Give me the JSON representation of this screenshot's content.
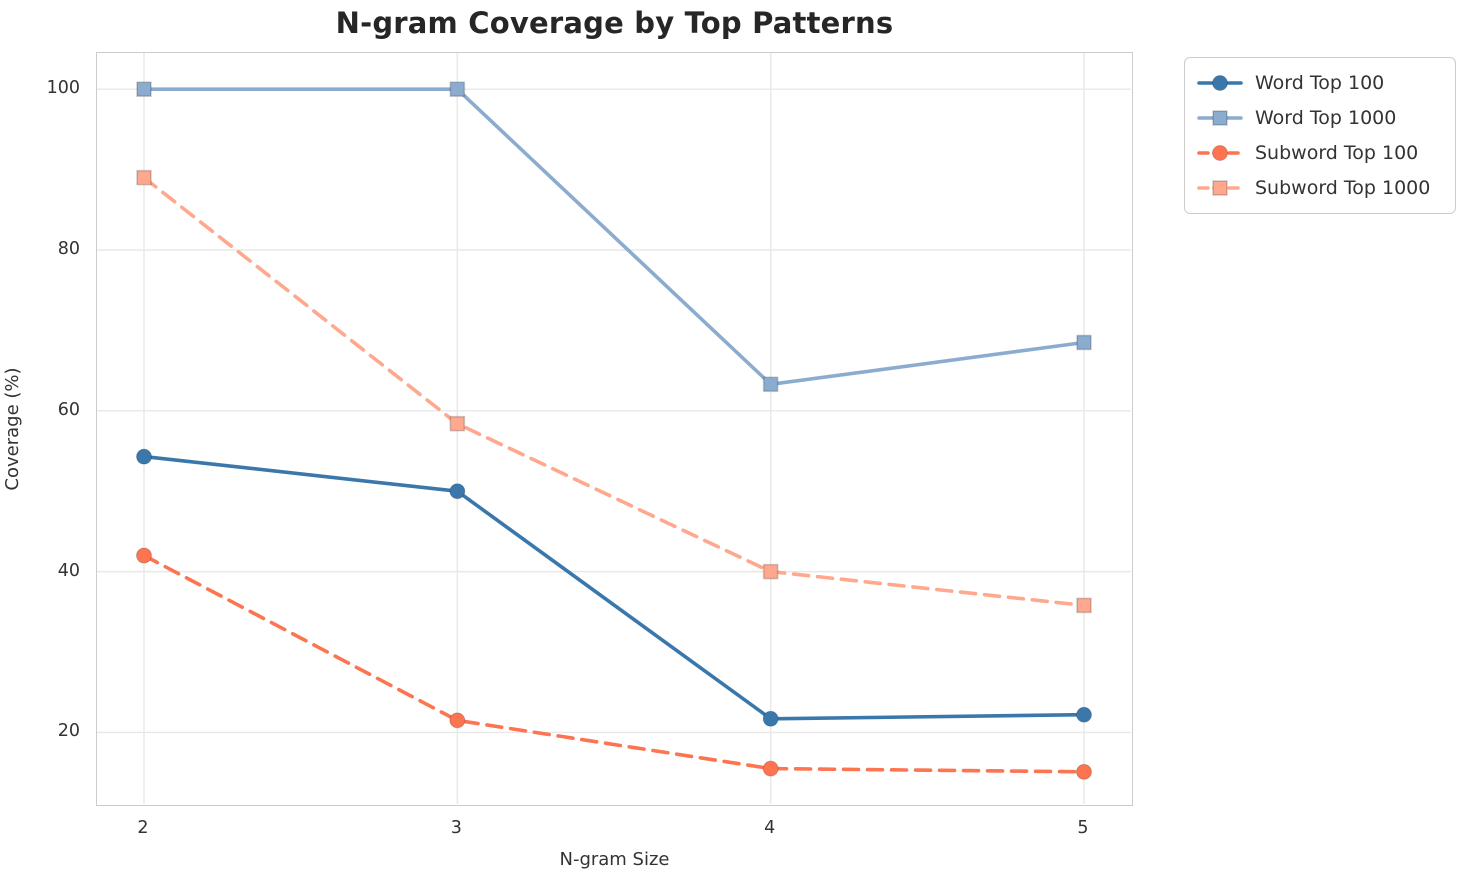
{
  "chart_data": {
    "type": "line",
    "title": "N-gram Coverage by Top Patterns",
    "xlabel": "N-gram Size",
    "ylabel": "Coverage (%)",
    "x": [
      2,
      3,
      4,
      5
    ],
    "xtick_labels": [
      "2",
      "3",
      "4",
      "5"
    ],
    "ytick_values": [
      100,
      80,
      60,
      40,
      20
    ],
    "ytick_labels": [
      "100",
      "80",
      "60",
      "40",
      "20"
    ],
    "xlim": [
      1.85,
      5.15
    ],
    "ylim": [
      11.1,
      104.5
    ],
    "grid": true,
    "legend_position": "outside-top-right",
    "series": [
      {
        "name": "Word Top 100",
        "values": [
          54.3,
          50.0,
          21.7,
          22.2
        ],
        "color": "#3a78ac",
        "line_style": "solid",
        "marker": "circle"
      },
      {
        "name": "Word Top 1000",
        "values": [
          100.0,
          100.0,
          63.3,
          68.5
        ],
        "color": "#8bacce",
        "line_style": "solid",
        "marker": "square"
      },
      {
        "name": "Subword Top 100",
        "values": [
          42.0,
          21.5,
          15.5,
          15.1
        ],
        "color": "#fc7450",
        "line_style": "dashed",
        "marker": "circle"
      },
      {
        "name": "Subword Top 1000",
        "values": [
          89.0,
          58.4,
          40.0,
          35.8
        ],
        "color": "#ffa88e",
        "line_style": "dashed",
        "marker": "square"
      }
    ]
  },
  "style_colors": {
    "grid": "#e8e8e8",
    "spine": "#cccccc",
    "tick_text": "#333333",
    "title_text": "#262626",
    "marker_edge": "rgba(0,0,0,0.18)"
  }
}
